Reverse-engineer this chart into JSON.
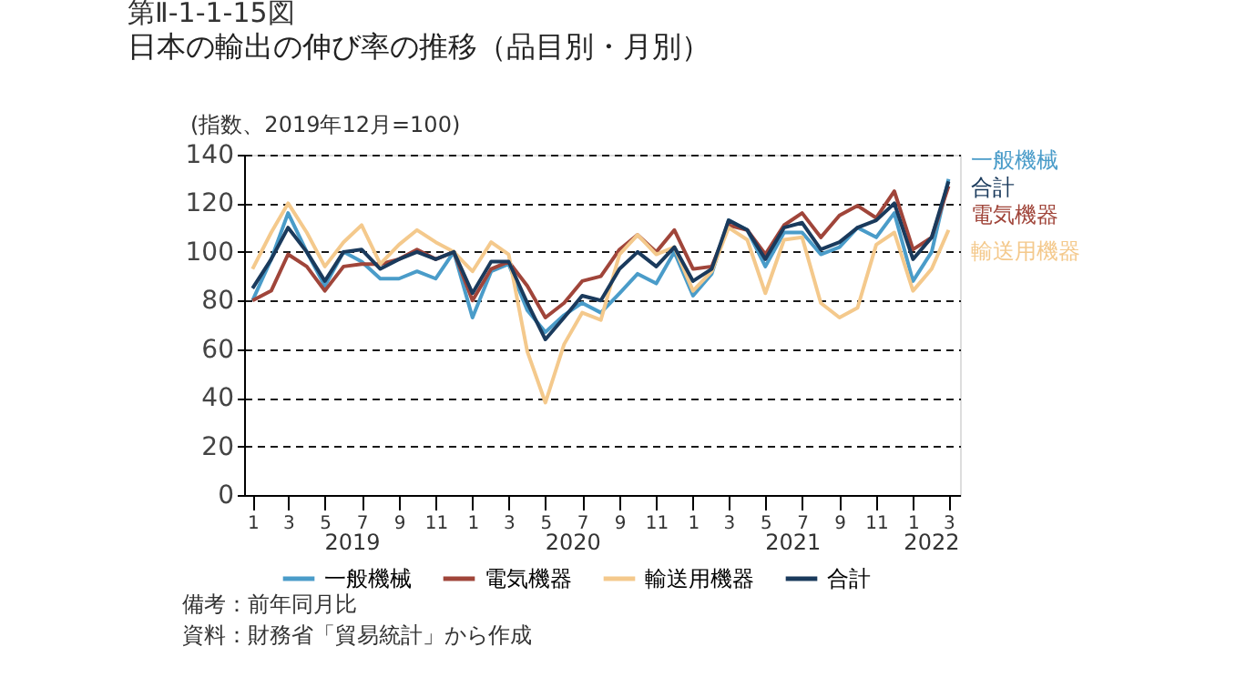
{
  "chart_data": {
    "type": "line",
    "title": "第Ⅱ-1-1-15図",
    "subtitle": "日本の輸出の伸び率の推移（品目別・月別）",
    "ylabel": "(指数、2019年12月=100)",
    "x": [
      "2019-01",
      "2019-02",
      "2019-03",
      "2019-04",
      "2019-05",
      "2019-06",
      "2019-07",
      "2019-08",
      "2019-09",
      "2019-10",
      "2019-11",
      "2019-12",
      "2020-01",
      "2020-02",
      "2020-03",
      "2020-04",
      "2020-05",
      "2020-06",
      "2020-07",
      "2020-08",
      "2020-09",
      "2020-10",
      "2020-11",
      "2020-12",
      "2021-01",
      "2021-02",
      "2021-03",
      "2021-04",
      "2021-05",
      "2021-06",
      "2021-07",
      "2021-08",
      "2021-09",
      "2021-10",
      "2021-11",
      "2021-12",
      "2022-01",
      "2022-02",
      "2022-03"
    ],
    "series": [
      {
        "name": "一般機械",
        "color": "#4a9cc9",
        "values": [
          80,
          97,
          116,
          100,
          86,
          100,
          96,
          89,
          89,
          92,
          89,
          100,
          73,
          92,
          95,
          76,
          67,
          74,
          79,
          75,
          83,
          91,
          87,
          100,
          82,
          91,
          113,
          109,
          94,
          108,
          108,
          99,
          102,
          110,
          106,
          116,
          88,
          100,
          130
        ]
      },
      {
        "name": "電気機器",
        "color": "#a0453a",
        "values": [
          80,
          84,
          99,
          94,
          84,
          94,
          95,
          95,
          97,
          101,
          97,
          100,
          80,
          93,
          96,
          86,
          73,
          79,
          88,
          90,
          101,
          107,
          100,
          109,
          93,
          94,
          111,
          109,
          99,
          111,
          116,
          106,
          115,
          119,
          114,
          125,
          101,
          106,
          127
        ]
      },
      {
        "name": "輸送用機器",
        "color": "#f4c98c",
        "values": [
          93,
          108,
          120,
          108,
          94,
          104,
          111,
          95,
          103,
          109,
          104,
          100,
          92,
          104,
          99,
          59,
          38,
          62,
          75,
          72,
          99,
          107,
          99,
          102,
          84,
          92,
          110,
          105,
          83,
          105,
          106,
          79,
          73,
          77,
          103,
          108,
          84,
          93,
          109
        ]
      },
      {
        "name": "合計",
        "color": "#1a3a5c",
        "values": [
          85,
          97,
          110,
          100,
          88,
          100,
          101,
          93,
          97,
          100,
          97,
          100,
          83,
          96,
          96,
          79,
          64,
          73,
          82,
          80,
          93,
          100,
          94,
          102,
          88,
          93,
          113,
          109,
          97,
          110,
          112,
          101,
          104,
          110,
          113,
          120,
          97,
          106,
          129
        ]
      }
    ],
    "xlim": [
      "2018-12-18",
      "2022-03-20"
    ],
    "xticks": [
      {
        "value": "2019-01",
        "label": "1"
      },
      {
        "value": "2019-03",
        "label": "3"
      },
      {
        "value": "2019-05",
        "label": "5"
      },
      {
        "value": "2019-07",
        "label": "7"
      },
      {
        "value": "2019-09",
        "label": "9"
      },
      {
        "value": "2019-11",
        "label": "11"
      },
      {
        "value": "2020-01",
        "label": "1"
      },
      {
        "value": "2020-03",
        "label": "3"
      },
      {
        "value": "2020-05",
        "label": "5"
      },
      {
        "value": "2020-07",
        "label": "7"
      },
      {
        "value": "2020-09",
        "label": "9"
      },
      {
        "value": "2020-11",
        "label": "11"
      },
      {
        "value": "2021-01",
        "label": "1"
      },
      {
        "value": "2021-03",
        "label": "3"
      },
      {
        "value": "2021-05",
        "label": "5"
      },
      {
        "value": "2021-07",
        "label": "7"
      },
      {
        "value": "2021-09",
        "label": "9"
      },
      {
        "value": "2021-11",
        "label": "11"
      },
      {
        "value": "2022-01",
        "label": "1"
      },
      {
        "value": "2022-03",
        "label": "3"
      }
    ],
    "ylim": [
      0,
      140
    ],
    "yticks": [
      0,
      20,
      40,
      60,
      80,
      100,
      120,
      140
    ],
    "grid": "y",
    "legend": "bottom",
    "marker": "none",
    "line_style": "solid",
    "x2lim": [
      "2018-12-18",
      "2022-03-20"
    ],
    "x2ticks": [
      {
        "value": "2019-06-16",
        "label": "2019"
      },
      {
        "value": "2020-06-16",
        "label": "2020"
      },
      {
        "value": "2021-06-16",
        "label": "2021"
      },
      {
        "value": "2022-02-01",
        "label": "2022"
      }
    ],
    "annotations": [
      "備考：前年同月比",
      "資料：財務省「貿易統計」から作成"
    ]
  }
}
